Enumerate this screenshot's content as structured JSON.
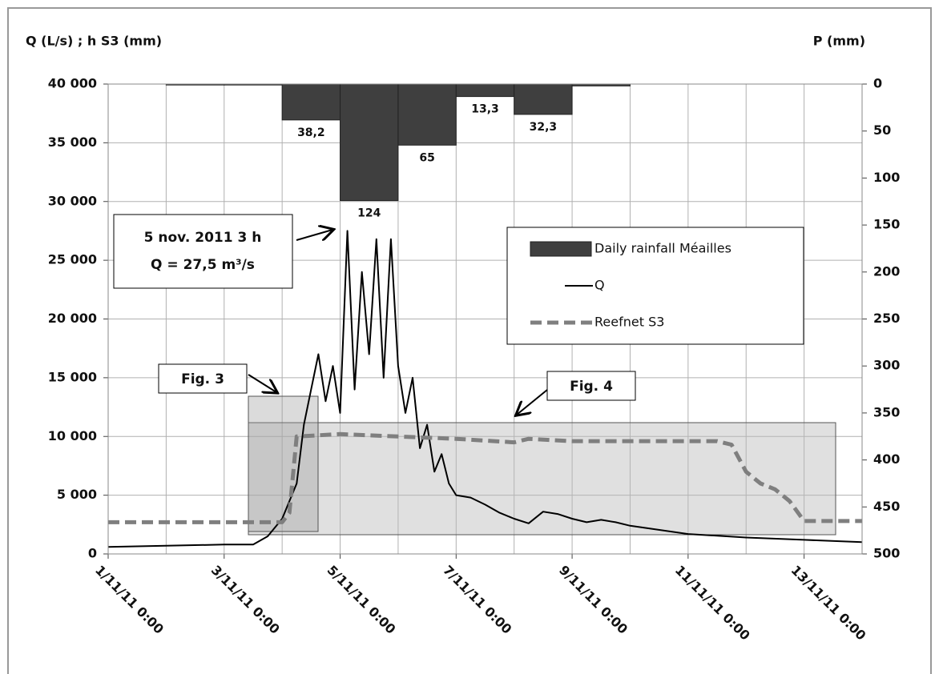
{
  "chart_data": {
    "type": "combo",
    "y_title": "Q (L/s) ; h S3 (mm)",
    "y2_title": "P (mm)",
    "xlim": [
      "1/11/11 0:00",
      "14/11/11 0:00"
    ],
    "xticks": [
      "1/11/11 0:00",
      "3/11/11 0:00",
      "5/11/11 0:00",
      "7/11/11 0:00",
      "9/11/11 0:00",
      "11/11/11 0:00",
      "13/11/11 0:00"
    ],
    "ylim": [
      0,
      40000
    ],
    "yticks": [
      0,
      {
        "value": 5000,
        "label": "5 000"
      },
      {
        "value": 10000,
        "label": "10 000"
      },
      {
        "value": 15000,
        "label": "15 000"
      },
      {
        "value": 20000,
        "label": "20 000"
      },
      {
        "value": 25000,
        "label": "25 000"
      },
      {
        "value": 30000,
        "label": "30 000"
      },
      {
        "value": 35000,
        "label": "35 000"
      },
      {
        "value": 40000,
        "label": "40 000"
      }
    ],
    "y2lim": [
      0,
      500
    ],
    "y2_inverted": true,
    "y2ticks": [
      0,
      50,
      100,
      150,
      200,
      250,
      300,
      350,
      400,
      450,
      500
    ],
    "grid": true,
    "series": [
      {
        "name": "Daily rainfall Méailles",
        "type": "bar",
        "axis": "y2",
        "color": "#3f3f3f",
        "x": [
          "2/11/11 0:00",
          "3/11/11 0:00",
          "4/11/11 0:00",
          "5/11/11 0:00",
          "6/11/11 0:00",
          "7/11/11 0:00",
          "8/11/11 0:00",
          "9/11/11 0:00"
        ],
        "values": [
          1,
          1,
          38.2,
          124,
          65,
          13.3,
          32.3,
          2
        ],
        "value_labels": [
          null,
          null,
          "38,2",
          "124",
          "65",
          "13,3",
          "32,3",
          null
        ]
      },
      {
        "name": "Q",
        "type": "line",
        "color": "#000000",
        "x": [
          "1/11/11 0:00",
          "3/11/11 0:00",
          "3/11/11 12:00",
          "3/11/11 18:00",
          "4/11/11 0:00",
          "4/11/11 6:00",
          "4/11/11 9:00",
          "4/11/11 12:00",
          "4/11/11 15:00",
          "4/11/11 18:00",
          "4/11/11 21:00",
          "5/11/11 0:00",
          "5/11/11 3:00",
          "5/11/11 6:00",
          "5/11/11 9:00",
          "5/11/11 12:00",
          "5/11/11 15:00",
          "5/11/11 18:00",
          "5/11/11 21:00",
          "6/11/11 0:00",
          "6/11/11 3:00",
          "6/11/11 6:00",
          "6/11/11 9:00",
          "6/11/11 12:00",
          "6/11/11 15:00",
          "6/11/11 18:00",
          "6/11/11 21:00",
          "7/11/11 0:00",
          "7/11/11 6:00",
          "7/11/11 12:00",
          "7/11/11 18:00",
          "8/11/11 0:00",
          "8/11/11 6:00",
          "8/11/11 12:00",
          "8/11/11 18:00",
          "9/11/11 0:00",
          "9/11/11 6:00",
          "9/11/11 12:00",
          "9/11/11 18:00",
          "10/11/11 0:00",
          "11/11/11 0:00",
          "12/11/11 0:00",
          "13/11/11 0:00",
          "14/11/11 0:00"
        ],
        "values": [
          600,
          800,
          800,
          1500,
          3000,
          6000,
          11000,
          14000,
          17000,
          13000,
          16000,
          12000,
          27500,
          14000,
          24000,
          17000,
          26800,
          15000,
          26800,
          16000,
          12000,
          15000,
          9000,
          11000,
          7000,
          8500,
          6000,
          5000,
          4800,
          4200,
          3500,
          3000,
          2600,
          3600,
          3400,
          3000,
          2700,
          2900,
          2700,
          2400,
          1700,
          1400,
          1200,
          1000
        ]
      },
      {
        "name": "Reefnet S3",
        "type": "line",
        "dashed": true,
        "color": "#7f7f7f",
        "x": [
          "1/11/11 0:00",
          "4/11/11 0:00",
          "4/11/11 3:00",
          "4/11/11 6:00",
          "5/11/11 0:00",
          "6/11/11 0:00",
          "7/11/11 0:00",
          "8/11/11 0:00",
          "8/11/11 6:00",
          "9/11/11 0:00",
          "11/11/11 12:00",
          "11/11/11 18:00",
          "12/11/11 0:00",
          "12/11/11 6:00",
          "12/11/11 12:00",
          "12/11/11 18:00",
          "13/11/11 0:00",
          "14/11/11 0:00"
        ],
        "values": [
          2700,
          2700,
          3500,
          10000,
          10200,
          10000,
          9800,
          9500,
          9800,
          9600,
          9600,
          9300,
          7000,
          6000,
          5500,
          4500,
          2800,
          2800
        ]
      }
    ],
    "annotations": [
      "5 nov. 2011 3 h",
      "Q = 27,5 m³/s",
      "Fig. 3",
      "Fig. 4"
    ]
  }
}
